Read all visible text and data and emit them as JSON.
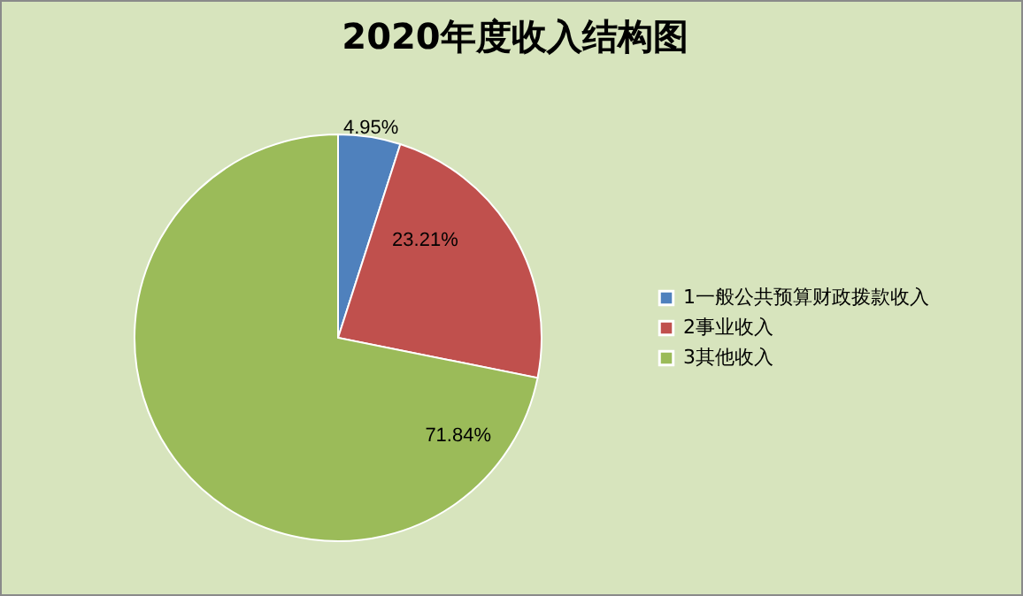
{
  "chart_data": {
    "type": "pie",
    "title": "2020年度收入结构图",
    "categories": [
      "1一般公共预算财政拨款收入",
      "2事业收入",
      "3其他收入"
    ],
    "values": [
      4.95,
      23.21,
      71.84
    ],
    "colors": [
      "#4f81bd",
      "#c0504d",
      "#9bbb59"
    ],
    "value_labels": [
      "4.95%",
      "23.21%",
      "71.84%"
    ],
    "legend": "right"
  }
}
